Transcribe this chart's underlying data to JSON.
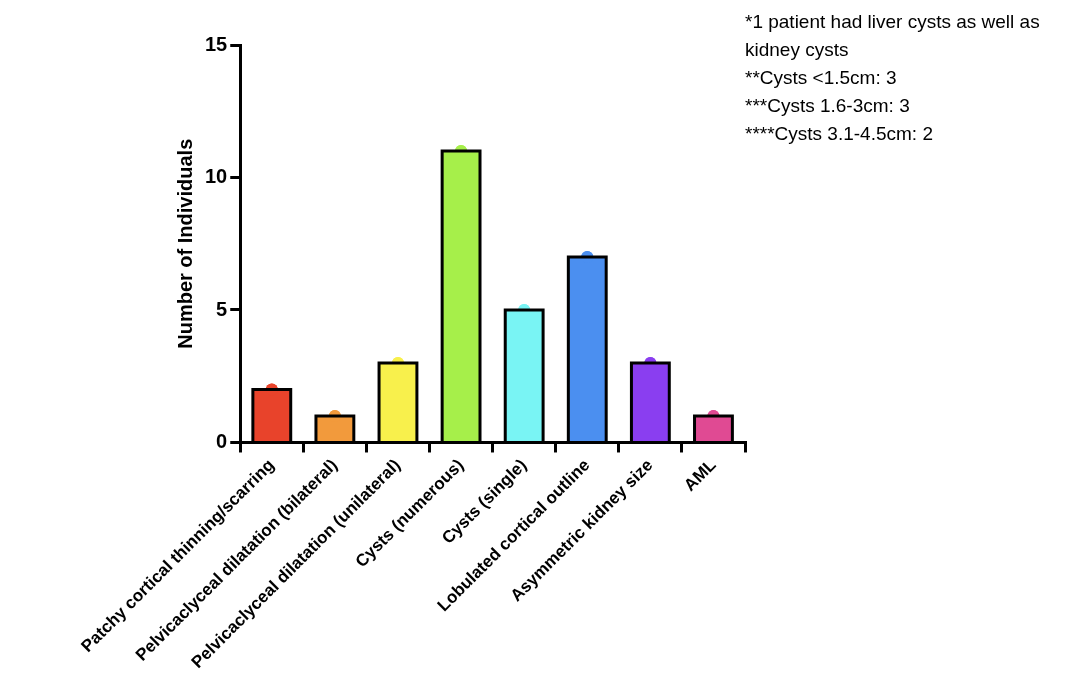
{
  "chart_data": {
    "type": "bar",
    "ylabel": "Number of Individuals",
    "categories": [
      "Patchy cortical thinning/scarring",
      "Pelvicaclyceal dilatation (bilateral)",
      "Pelvicaclyceal dilatation (unilateral)",
      "Cysts (numerous)",
      "Cysts (single)",
      "Lobulated cortical outline",
      "Asymmetric kidney size",
      "AML"
    ],
    "series": [
      {
        "values": [
          2,
          1,
          3,
          11,
          5,
          7,
          3,
          1
        ],
        "colors": [
          "#e8432b",
          "#f29a3c",
          "#f8f04c",
          "#a6ef4a",
          "#79f4f4",
          "#4b8ff0",
          "#8a3ef0",
          "#e04a93"
        ]
      },
      {
        "type": "scatter",
        "x": [
          "Patchy cortical thinning/scarring",
          "Pelvicaclyceal dilatation (bilateral)",
          "Pelvicaclyceal dilatation (unilateral)",
          "Cysts (numerous)",
          "Cysts (single)",
          "Lobulated cortical outline",
          "Asymmetric kidney size",
          "AML"
        ],
        "values": [
          2,
          1,
          3,
          11,
          5,
          7,
          3,
          1
        ],
        "colors": [
          "#e8432b",
          "#f29a3c",
          "#f8f04c",
          "#a6ef4a",
          "#79f4f4",
          "#4b8ff0",
          "#8a3ef0",
          "#e04a93"
        ]
      }
    ],
    "ylim": [
      0,
      15
    ],
    "yticks": [
      0,
      5,
      10,
      15
    ],
    "marker": "circle",
    "annotations": [
      "*1 patient had liver cysts as well as kidney cysts",
      "**Cysts <1.5cm: 3",
      "***Cysts 1.6-3cm: 3",
      "****Cysts 3.1-4.5cm: 2"
    ]
  }
}
